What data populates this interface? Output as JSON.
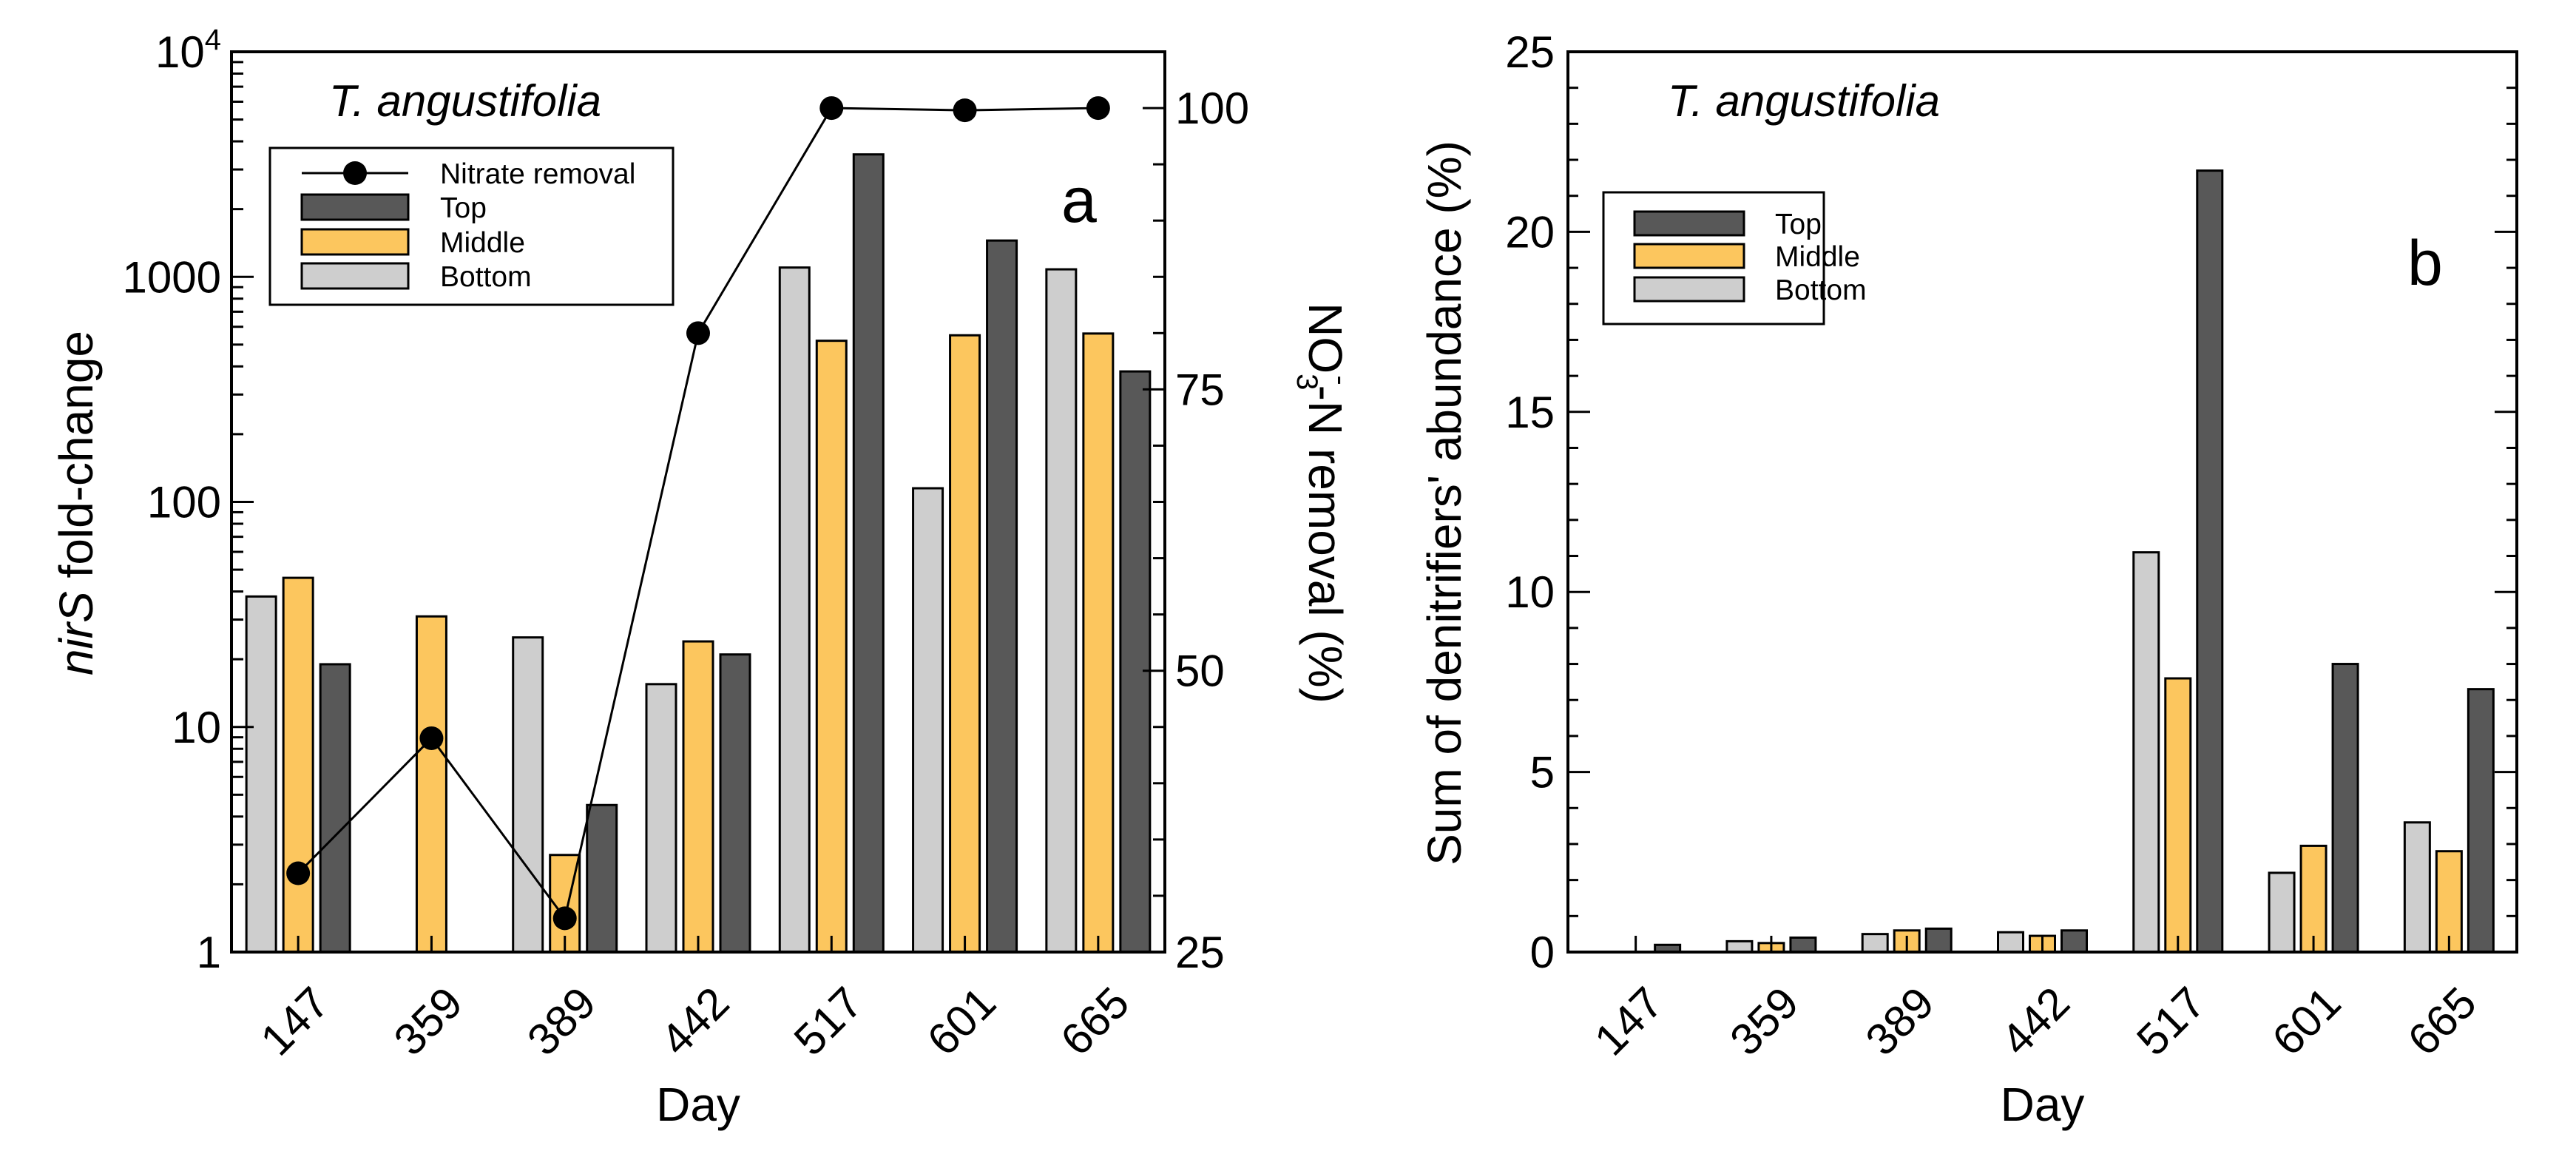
{
  "colors": {
    "top": "#585858",
    "middle": "#fcc65e",
    "bottom": "#cecece",
    "line": "#000000"
  },
  "chart_data": [
    {
      "type": "bar",
      "panel_label": "a",
      "annotation": "T. angustifolia",
      "xlabel": "Day",
      "ylabel": {
        "italic": "nirS",
        "rest": " fold-change"
      },
      "y2label": {
        "a": "NO",
        "sub": "3",
        "sup": "-",
        "b": "-N removal (%)"
      },
      "yscale": "log",
      "ylim": [
        1,
        10000
      ],
      "y_ticks": [
        {
          "value": 1,
          "label": "1"
        },
        {
          "value": 10,
          "label": "10"
        },
        {
          "value": 100,
          "label": "100"
        },
        {
          "value": 1000,
          "label": "1000"
        },
        {
          "value": 10000,
          "base": "10",
          "exp": "4"
        }
      ],
      "y2lim": [
        25,
        105
      ],
      "y2_ticks": [
        {
          "value": 25,
          "label": "25"
        },
        {
          "value": 50,
          "label": "50"
        },
        {
          "value": 75,
          "label": "75"
        },
        {
          "value": 100,
          "label": "100"
        }
      ],
      "categories": [
        "147",
        "359",
        "389",
        "442",
        "517",
        "601",
        "665"
      ],
      "series": [
        {
          "name": "Bottom",
          "color_key": "bottom",
          "values": [
            38,
            null,
            25,
            15.5,
            1100,
            115,
            1080
          ]
        },
        {
          "name": "Middle",
          "color_key": "middle",
          "values": [
            46,
            31,
            2.7,
            24,
            520,
            550,
            560
          ]
        },
        {
          "name": "Top",
          "color_key": "top",
          "values": [
            19,
            null,
            4.5,
            21,
            3500,
            1450,
            380
          ]
        }
      ],
      "line_series": {
        "name": "Nitrate removal",
        "axis": "right",
        "values": [
          32,
          44,
          28,
          80,
          100,
          99.8,
          100
        ]
      },
      "legend": [
        "Nitrate removal",
        "Top",
        "Middle",
        "Bottom"
      ],
      "legend_position": "top-left"
    },
    {
      "type": "bar",
      "panel_label": "b",
      "annotation": "T. angustifolia",
      "xlabel": "Day",
      "ylabel": "Sum of denitrifiers' abundance (%)",
      "ylim": [
        0,
        25
      ],
      "y_ticks": [
        0,
        5,
        10,
        15,
        20,
        25
      ],
      "categories": [
        "147",
        "359",
        "389",
        "442",
        "517",
        "601",
        "665"
      ],
      "series": [
        {
          "name": "Bottom",
          "color_key": "bottom",
          "values": [
            0,
            0.3,
            0.5,
            0.55,
            11.1,
            2.2,
            3.6
          ]
        },
        {
          "name": "Middle",
          "color_key": "middle",
          "values": [
            0,
            0.25,
            0.6,
            0.45,
            7.6,
            2.95,
            2.8
          ]
        },
        {
          "name": "Top",
          "color_key": "top",
          "values": [
            0.2,
            0.4,
            0.65,
            0.6,
            21.7,
            8.0,
            7.3
          ]
        }
      ],
      "legend": [
        "Top",
        "Middle",
        "Bottom"
      ],
      "legend_position": "top-left"
    }
  ]
}
